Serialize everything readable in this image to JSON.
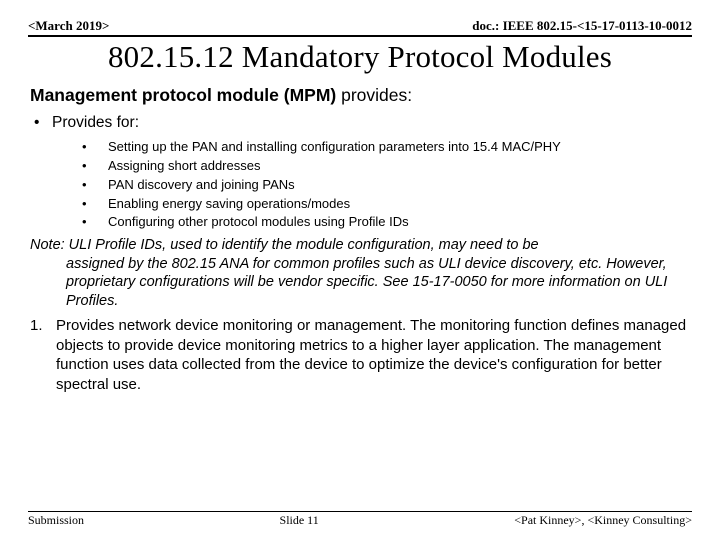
{
  "header": {
    "left": "<March 2019>",
    "right": "doc.: IEEE 802.15-<15-17-0113-10-0012"
  },
  "title": "802.15.12 Mandatory Protocol Modules",
  "subtitle_bold": "Management protocol module (MPM)",
  "subtitle_rest": " provides:",
  "provides_label": "Provides for:",
  "sub_bullets": [
    "Setting up the PAN and installing configuration parameters into 15.4 MAC/PHY",
    "Assigning short addresses",
    "PAN discovery and joining PANs",
    "Enabling energy saving operations/modes",
    "Configuring other protocol modules using Profile IDs"
  ],
  "note_first": "Note: ULI Profile IDs, used to identify the module configuration, may need to be",
  "note_rest": "assigned by the 802.15 ANA for common profiles such as ULI device discovery, etc.  However, proprietary configurations will be vendor specific.  See 15-17-0050 for more information on ULI Profiles.",
  "numbered_num": "1.",
  "numbered_text": "Provides network device monitoring or management.  The monitoring function defines managed objects to provide device monitoring metrics to a higher layer application.  The management function uses data collected from the device to optimize the device's configuration for better spectral use.",
  "footer": {
    "left": "Submission",
    "center": "Slide 11",
    "right": "<Pat Kinney>, <Kinney Consulting>"
  }
}
